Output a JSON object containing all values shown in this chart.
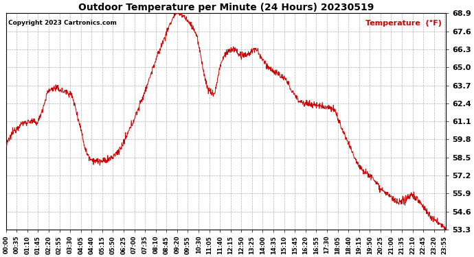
{
  "title": "Outdoor Temperature per Minute (24 Hours) 20230519",
  "copyright_text": "Copyright 2023 Cartronics.com",
  "legend_label": "Temperature  (°F)",
  "line_color": "#cc0000",
  "background_color": "#ffffff",
  "grid_color": "#b0b0b0",
  "y_min": 53.3,
  "y_max": 68.9,
  "y_ticks": [
    53.3,
    54.6,
    55.9,
    57.2,
    58.5,
    59.8,
    61.1,
    62.4,
    63.7,
    65.0,
    66.3,
    67.6,
    68.9
  ],
  "x_tick_step": 35,
  "time_labels": [
    "00:00",
    "00:35",
    "01:10",
    "01:45",
    "02:20",
    "02:55",
    "03:30",
    "04:05",
    "04:40",
    "05:15",
    "05:50",
    "06:25",
    "07:00",
    "07:35",
    "08:10",
    "08:45",
    "09:20",
    "09:55",
    "10:30",
    "11:05",
    "11:40",
    "12:15",
    "12:50",
    "13:25",
    "14:00",
    "14:35",
    "15:10",
    "15:45",
    "16:20",
    "16:55",
    "17:30",
    "18:05",
    "18:40",
    "19:15",
    "19:50",
    "20:25",
    "21:00",
    "21:35",
    "22:10",
    "22:45",
    "23:20",
    "23:55"
  ],
  "figwidth": 6.9,
  "figheight": 3.75,
  "dpi": 100
}
